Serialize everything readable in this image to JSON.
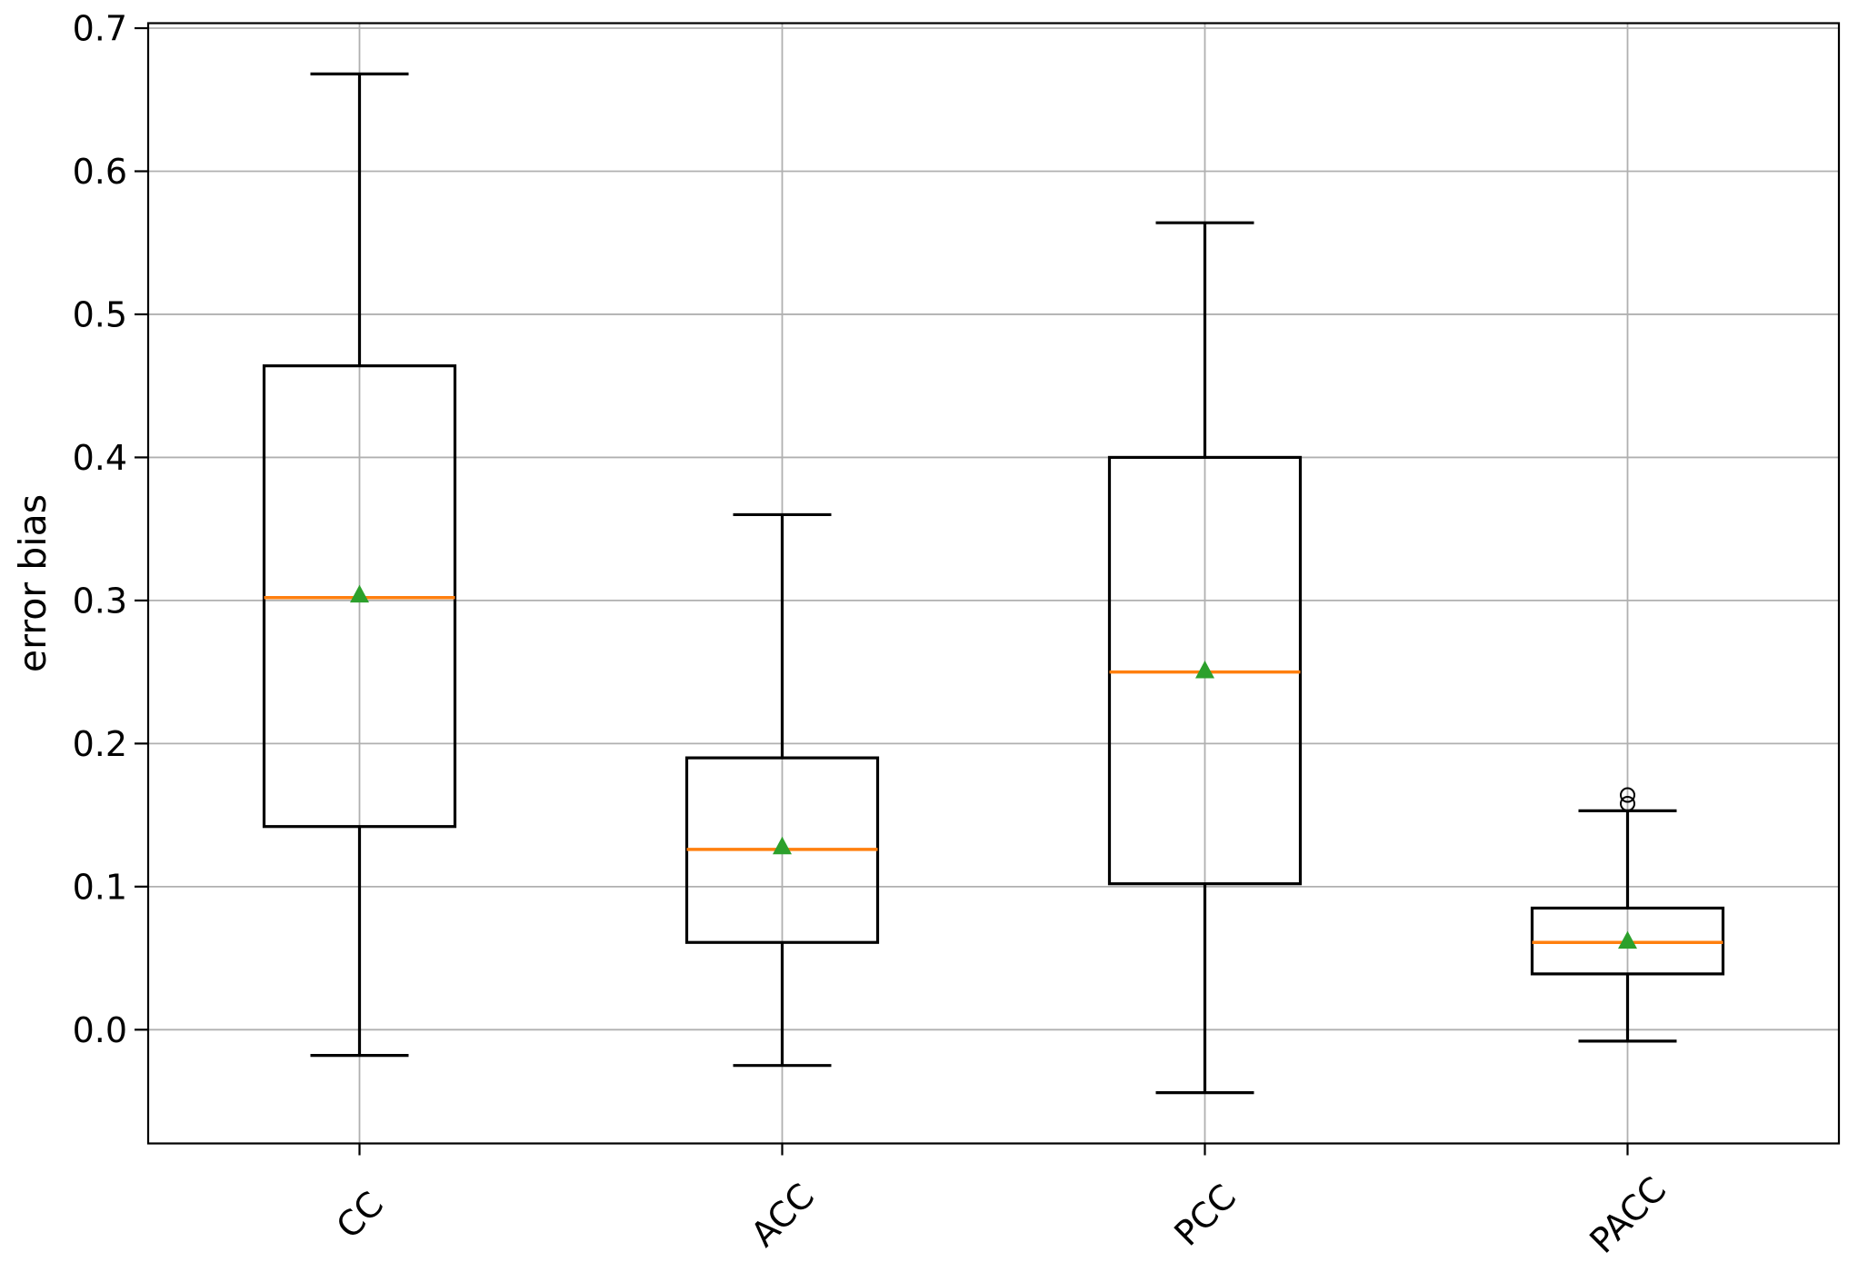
{
  "chart_data": {
    "type": "box",
    "title": "",
    "xlabel": "",
    "ylabel": "error bias",
    "categories": [
      "CC",
      "ACC",
      "PCC",
      "PACC"
    ],
    "yticks": [
      0.0,
      0.1,
      0.2,
      0.3,
      0.4,
      0.5,
      0.6,
      0.7
    ],
    "ytick_labels": [
      "0.0",
      "0.1",
      "0.2",
      "0.3",
      "0.4",
      "0.5",
      "0.6",
      "0.7"
    ],
    "ylim": [
      -0.0795,
      0.7035
    ],
    "grid": true,
    "legend": "none",
    "x_tick_rotation": 45,
    "series": [
      {
        "label": "CC",
        "whislo": -0.018,
        "q1": 0.142,
        "med": 0.302,
        "q3": 0.464,
        "whishi": 0.668,
        "mean": 0.304,
        "fliers": []
      },
      {
        "label": "ACC",
        "whislo": -0.025,
        "q1": 0.061,
        "med": 0.126,
        "q3": 0.19,
        "whishi": 0.36,
        "mean": 0.128,
        "fliers": []
      },
      {
        "label": "PCC",
        "whislo": -0.044,
        "q1": 0.102,
        "med": 0.25,
        "q3": 0.4,
        "whishi": 0.564,
        "mean": 0.251,
        "fliers": []
      },
      {
        "label": "PACC",
        "whislo": -0.008,
        "q1": 0.039,
        "med": 0.061,
        "q3": 0.085,
        "whishi": 0.153,
        "mean": 0.062,
        "fliers": [
          0.158,
          0.164
        ]
      }
    ],
    "colors": {
      "box_line": "#000000",
      "median_line": "#ff7f0e",
      "mean_marker": "#2ca02c",
      "grid_line": "#b0b0b0",
      "spine": "#000000",
      "text": "#000000",
      "background": "#ffffff"
    }
  }
}
